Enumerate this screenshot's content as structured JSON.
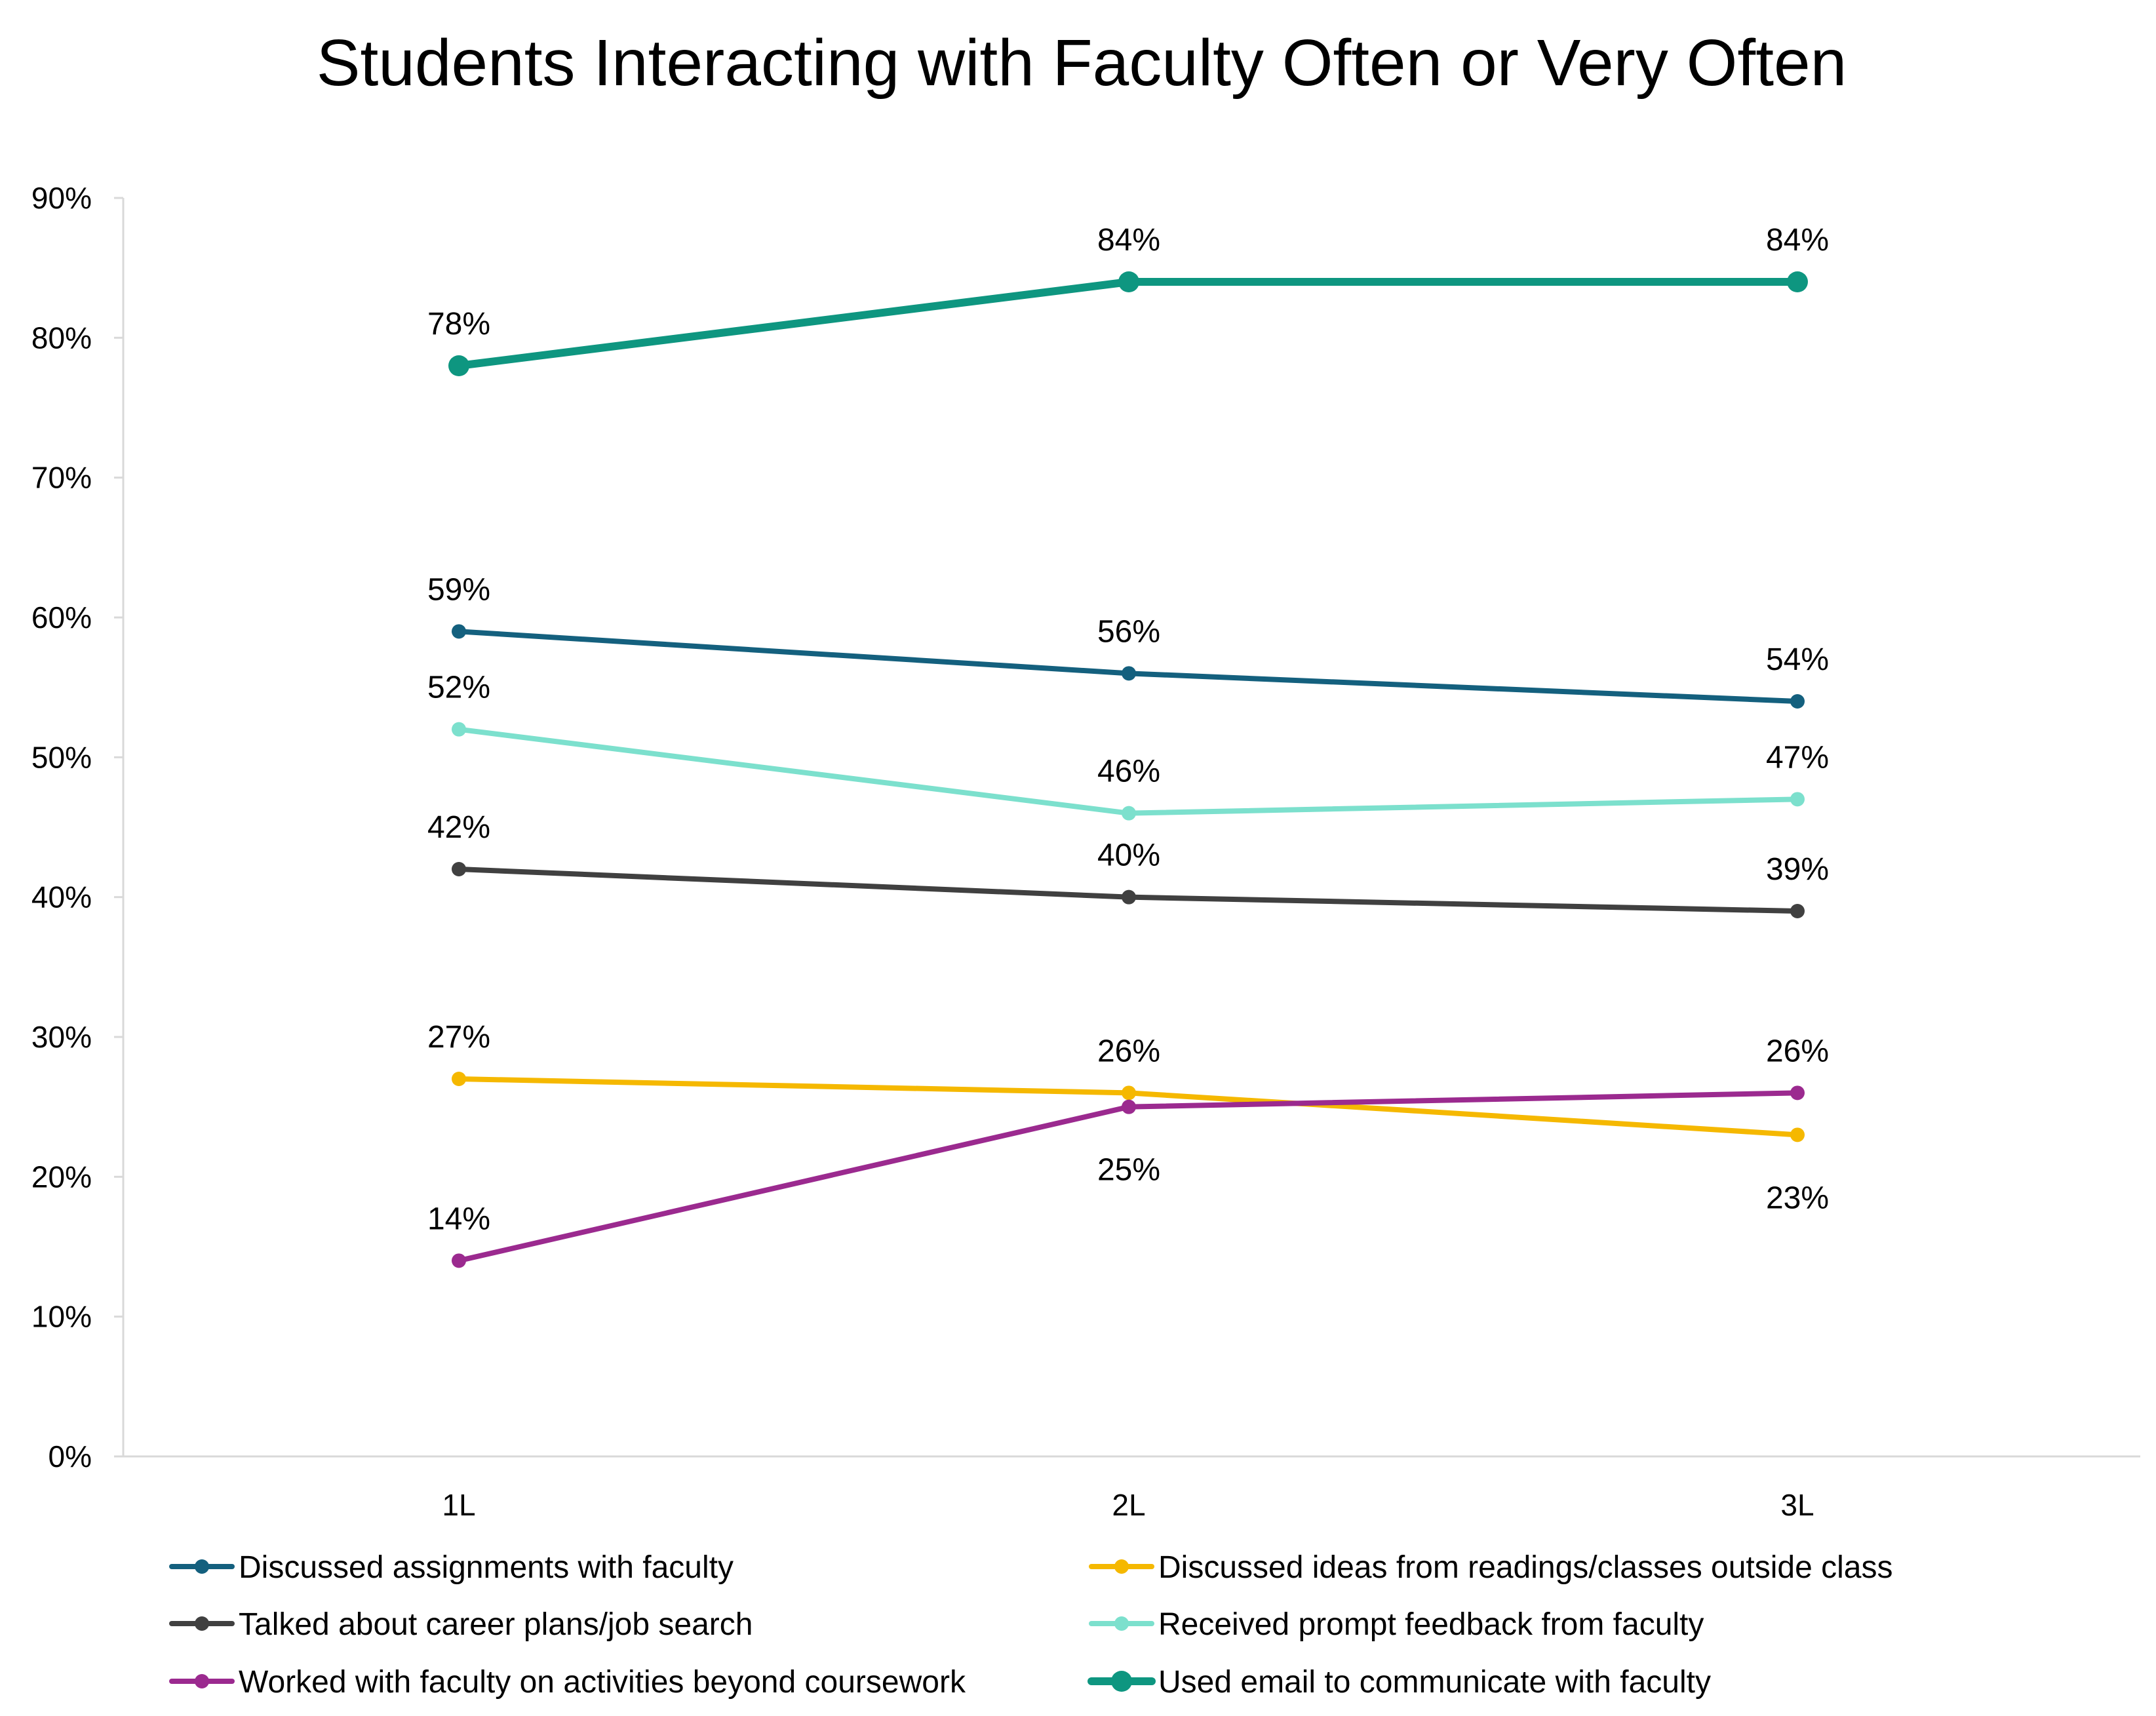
{
  "chart_data": {
    "type": "line",
    "title": "Students Interacting with Faculty Often or Very Often",
    "xlabel": "",
    "ylabel": "",
    "categories": [
      "1L",
      "2L",
      "3L"
    ],
    "ylim": [
      0,
      90
    ],
    "yticks": [
      "0%",
      "10%",
      "20%",
      "30%",
      "40%",
      "50%",
      "60%",
      "70%",
      "80%",
      "90%"
    ],
    "grid": false,
    "legend_placement": "bottom",
    "series": [
      {
        "name": "Discussed assignments with faculty",
        "values": [
          59,
          56,
          54
        ],
        "labels": [
          "59%",
          "56%",
          "54%"
        ],
        "color": "#14607E",
        "label_position": [
          "above",
          "above",
          "above"
        ]
      },
      {
        "name": "Discussed ideas from readings/classes outside class",
        "values": [
          27,
          26,
          23
        ],
        "labels": [
          "27%",
          "26%",
          "23%"
        ],
        "color": "#F5B800",
        "label_position": [
          "above",
          "above",
          "below"
        ]
      },
      {
        "name": "Talked about career plans/job search",
        "values": [
          42,
          40,
          39
        ],
        "labels": [
          "42%",
          "40%",
          "39%"
        ],
        "color": "#404040",
        "label_position": [
          "above",
          "above",
          "above"
        ]
      },
      {
        "name": "Received prompt feedback from faculty",
        "values": [
          52,
          46,
          47
        ],
        "labels": [
          "52%",
          "46%",
          "47%"
        ],
        "color": "#7CE0CD",
        "label_position": [
          "above",
          "above",
          "above"
        ]
      },
      {
        "name": "Worked with faculty on activities beyond coursework",
        "values": [
          14,
          25,
          26
        ],
        "labels": [
          "14%",
          "25%",
          "26%"
        ],
        "color": "#9B2A8F",
        "label_position": [
          "above",
          "below",
          "above"
        ]
      },
      {
        "name": "Used email to communicate with faculty",
        "values": [
          78,
          84,
          84
        ],
        "labels": [
          "78%",
          "84%",
          "84%"
        ],
        "color": "#0E9680",
        "label_position": [
          "above",
          "above",
          "above"
        ],
        "emphasis": true
      }
    ]
  }
}
